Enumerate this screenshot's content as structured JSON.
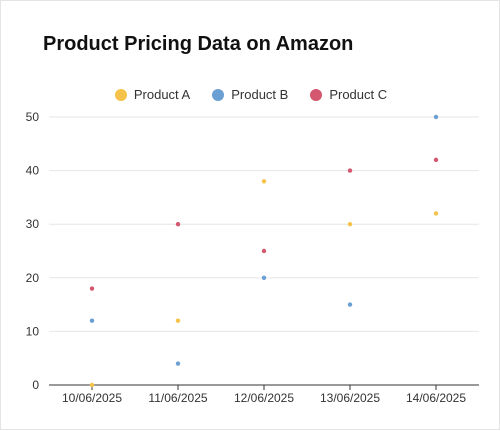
{
  "chart_data": {
    "type": "scatter",
    "title": "Product Pricing Data on Amazon",
    "xlabel": "",
    "ylabel": "",
    "categories": [
      "10/06/2025",
      "11/06/2025",
      "12/06/2025",
      "13/06/2025",
      "14/06/2025"
    ],
    "ylim": [
      0,
      50
    ],
    "yticks": [
      "0",
      "10",
      "20",
      "30",
      "40",
      "50"
    ],
    "grid": true,
    "legend_position": "top-center",
    "series": [
      {
        "name": "Product A",
        "color": "#f5c24a",
        "values": [
          0,
          12,
          38,
          30,
          32
        ]
      },
      {
        "name": "Product B",
        "color": "#6a9fd4",
        "values": [
          12,
          4,
          20,
          15,
          50
        ]
      },
      {
        "name": "Product C",
        "color": "#d4566f",
        "values": [
          18,
          30,
          25,
          40,
          42
        ]
      }
    ]
  }
}
